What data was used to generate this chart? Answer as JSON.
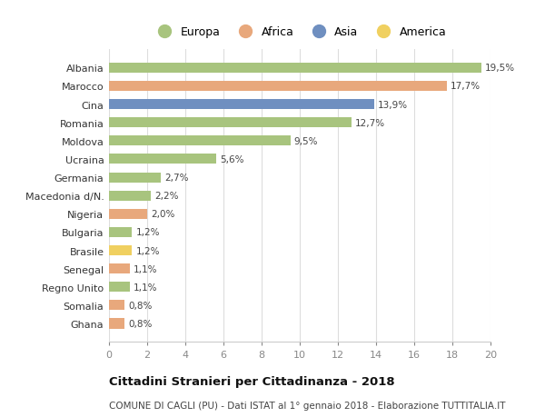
{
  "countries": [
    "Albania",
    "Marocco",
    "Cina",
    "Romania",
    "Moldova",
    "Ucraina",
    "Germania",
    "Macedonia d/N.",
    "Nigeria",
    "Bulgaria",
    "Brasile",
    "Senegal",
    "Regno Unito",
    "Somalia",
    "Ghana"
  ],
  "values": [
    19.5,
    17.7,
    13.9,
    12.7,
    9.5,
    5.6,
    2.7,
    2.2,
    2.0,
    1.2,
    1.2,
    1.1,
    1.1,
    0.8,
    0.8
  ],
  "labels": [
    "19,5%",
    "17,7%",
    "13,9%",
    "12,7%",
    "9,5%",
    "5,6%",
    "2,7%",
    "2,2%",
    "2,0%",
    "1,2%",
    "1,2%",
    "1,1%",
    "1,1%",
    "0,8%",
    "0,8%"
  ],
  "continents": [
    "Europa",
    "Africa",
    "Asia",
    "Europa",
    "Europa",
    "Europa",
    "Europa",
    "Europa",
    "Africa",
    "Europa",
    "America",
    "Africa",
    "Europa",
    "Africa",
    "Africa"
  ],
  "colors": {
    "Europa": "#a8c47e",
    "Africa": "#e8a87c",
    "Asia": "#6f8fc0",
    "America": "#f0d060"
  },
  "xlim": [
    0,
    20
  ],
  "xticks": [
    0,
    2,
    4,
    6,
    8,
    10,
    12,
    14,
    16,
    18,
    20
  ],
  "title": "Cittadini Stranieri per Cittadinanza - 2018",
  "subtitle": "COMUNE DI CAGLI (PU) - Dati ISTAT al 1° gennaio 2018 - Elaborazione TUTTITALIA.IT",
  "background_color": "#ffffff",
  "grid_color": "#dddddd",
  "legend_entries": [
    "Europa",
    "Africa",
    "Asia",
    "America"
  ],
  "bar_height": 0.55,
  "label_fontsize": 7.5,
  "ytick_fontsize": 8.0,
  "xtick_fontsize": 8.0,
  "title_fontsize": 9.5,
  "subtitle_fontsize": 7.5
}
